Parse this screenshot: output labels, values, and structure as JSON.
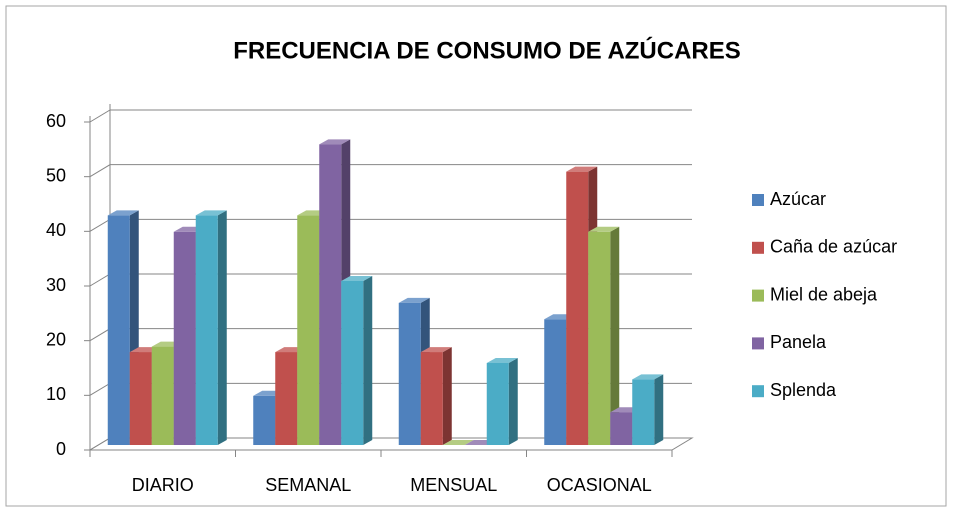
{
  "chart_data": {
    "type": "bar3d",
    "title": "FRECUENCIA DE CONSUMO DE  AZÚCARES",
    "categories": [
      "DIARIO",
      "SEMANAL",
      "MENSUAL",
      "OCASIONAL"
    ],
    "series": [
      {
        "name": "Azúcar",
        "color": "#4f81bd",
        "values": [
          42,
          9,
          26,
          23
        ]
      },
      {
        "name": "Caña de azúcar",
        "color": "#c0504d",
        "values": [
          17,
          17,
          17,
          50
        ]
      },
      {
        "name": "Miel de abeja",
        "color": "#9bbb59",
        "values": [
          18,
          42,
          0,
          39
        ]
      },
      {
        "name": "Panela",
        "color": "#8064a2",
        "values": [
          39,
          55,
          0,
          6
        ]
      },
      {
        "name": "Splenda",
        "color": "#4bacc6",
        "values": [
          42,
          30,
          15,
          12
        ]
      }
    ],
    "ylim": [
      0,
      60
    ],
    "yticks": [
      0,
      10,
      20,
      30,
      40,
      50,
      60
    ],
    "grid": true,
    "legend": "right"
  }
}
